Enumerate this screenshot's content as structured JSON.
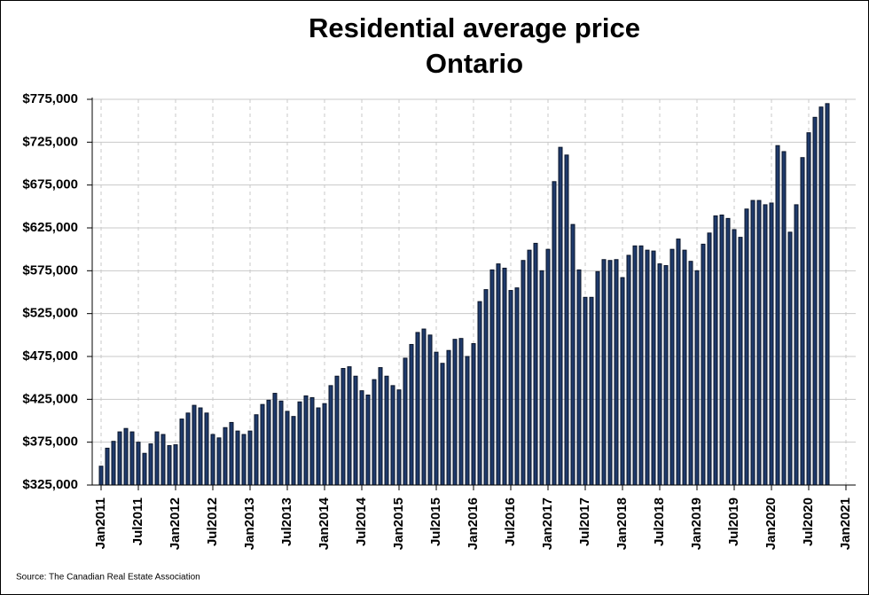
{
  "chart_data": {
    "type": "bar",
    "title": "Residential average price",
    "subtitle": "Ontario",
    "source": "Source: The Canadian Real Estate Association",
    "categories": [
      "Jan2011",
      null,
      null,
      null,
      null,
      null,
      "Jul2011",
      null,
      null,
      null,
      null,
      null,
      "Jan2012",
      null,
      null,
      null,
      null,
      null,
      "Jul2012",
      null,
      null,
      null,
      null,
      null,
      "Jan2013",
      null,
      null,
      null,
      null,
      null,
      "Jul2013",
      null,
      null,
      null,
      null,
      null,
      "Jan2014",
      null,
      null,
      null,
      null,
      null,
      "Jul2014",
      null,
      null,
      null,
      null,
      null,
      "Jan2015",
      null,
      null,
      null,
      null,
      null,
      "Jul2015",
      null,
      null,
      null,
      null,
      null,
      "Jan2016",
      null,
      null,
      null,
      null,
      null,
      "Jul2016",
      null,
      null,
      null,
      null,
      null,
      "Jan2017",
      null,
      null,
      null,
      null,
      null,
      "Jul2017",
      null,
      null,
      null,
      null,
      null,
      "Jan2018",
      null,
      null,
      null,
      null,
      null,
      "Jul2018",
      null,
      null,
      null,
      null,
      null,
      "Jan2019",
      null,
      null,
      null,
      null,
      null,
      "Jul2019",
      null,
      null,
      null,
      null,
      null,
      "Jan2020",
      null,
      null,
      null,
      null,
      null,
      "Jul2020",
      null,
      null,
      null,
      null,
      null,
      "Jan2021"
    ],
    "values": [
      347000,
      368000,
      376000,
      387000,
      391000,
      387000,
      375000,
      362000,
      373000,
      387000,
      384000,
      371000,
      372000,
      402000,
      409000,
      418000,
      415000,
      409000,
      384000,
      380000,
      392000,
      398000,
      388000,
      384000,
      388000,
      407000,
      419000,
      424000,
      432000,
      423000,
      411000,
      405000,
      422000,
      429000,
      427000,
      415000,
      420000,
      441000,
      452000,
      461000,
      463000,
      452000,
      435000,
      430000,
      448000,
      462000,
      452000,
      441000,
      436000,
      473000,
      489000,
      503000,
      507000,
      500000,
      480000,
      467000,
      482000,
      495000,
      496000,
      475000,
      490000,
      539000,
      553000,
      576000,
      583000,
      578000,
      552000,
      555000,
      587000,
      599000,
      607000,
      575000,
      600000,
      679000,
      719000,
      710000,
      629000,
      576000,
      544000,
      544000,
      574000,
      588000,
      587000,
      588000,
      567000,
      593000,
      604000,
      604000,
      599000,
      598000,
      583000,
      581000,
      600000,
      612000,
      599000,
      586000,
      575000,
      606000,
      619000,
      639000,
      640000,
      636000,
      623000,
      614000,
      647000,
      657000,
      657000,
      652000,
      654000,
      721000,
      714000,
      620000,
      652000,
      707000,
      736000,
      754000,
      766000,
      770000,
      null,
      null,
      null
    ],
    "color": "#1f3a6b",
    "ylim": [
      325000,
      775000
    ],
    "yticks": [
      {
        "value": 325000,
        "label": "$325,000"
      },
      {
        "value": 375000,
        "label": "$375,000"
      },
      {
        "value": 425000,
        "label": "$425,000"
      },
      {
        "value": 475000,
        "label": "$475,000"
      },
      {
        "value": 525000,
        "label": "$525,000"
      },
      {
        "value": 575000,
        "label": "$575,000"
      },
      {
        "value": 625000,
        "label": "$625,000"
      },
      {
        "value": 675000,
        "label": "$675,000"
      },
      {
        "value": 725000,
        "label": "$725,000"
      },
      {
        "value": 775000,
        "label": "$775,000"
      }
    ],
    "grid": true
  }
}
